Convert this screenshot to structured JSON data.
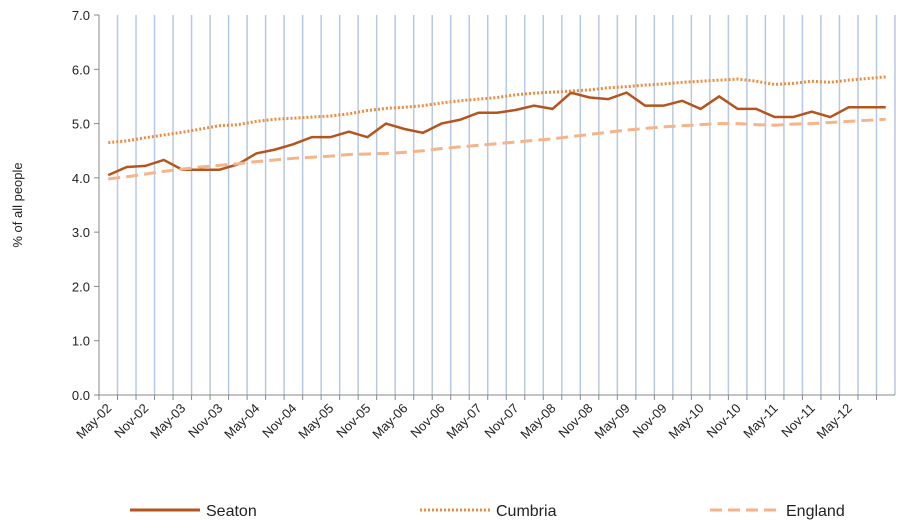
{
  "chart_data": {
    "type": "line",
    "y_label": "% of all people",
    "categories": [
      "May-02",
      null,
      "Nov-02",
      null,
      "May-03",
      null,
      "Nov-03",
      null,
      "May-04",
      null,
      "Nov-04",
      null,
      "May-05",
      null,
      "Nov-05",
      null,
      "May-06",
      null,
      "Nov-06",
      null,
      "May-07",
      null,
      "Nov-07",
      null,
      "May-08",
      null,
      "Nov-08",
      null,
      "May-09",
      null,
      "Nov-09",
      null,
      "May-10",
      null,
      "Nov-10",
      null,
      "May-11",
      null,
      "Nov-11",
      null,
      "May-12",
      null,
      null
    ],
    "series": [
      {
        "name": "Seaton",
        "color": "#b5541c",
        "style": "solid",
        "values": [
          4.05,
          4.2,
          4.22,
          4.33,
          4.15,
          4.15,
          4.15,
          4.25,
          4.45,
          4.52,
          4.62,
          4.75,
          4.75,
          4.85,
          4.75,
          5.0,
          4.9,
          4.83,
          5.0,
          5.07,
          5.2,
          5.2,
          5.25,
          5.33,
          5.27,
          5.57,
          5.48,
          5.45,
          5.57,
          5.33,
          5.33,
          5.42,
          5.27,
          5.5,
          5.27,
          5.27,
          5.12,
          5.12,
          5.22,
          5.12,
          5.3,
          5.3,
          5.3
        ]
      },
      {
        "name": "Cumbria",
        "color": "#f08a3c",
        "style": "dotted",
        "values": [
          4.65,
          4.68,
          4.74,
          4.79,
          4.84,
          4.9,
          4.96,
          4.98,
          5.04,
          5.08,
          5.1,
          5.12,
          5.14,
          5.18,
          5.24,
          5.28,
          5.3,
          5.33,
          5.38,
          5.42,
          5.45,
          5.48,
          5.53,
          5.56,
          5.58,
          5.6,
          5.62,
          5.66,
          5.68,
          5.71,
          5.73,
          5.76,
          5.78,
          5.8,
          5.82,
          5.78,
          5.72,
          5.74,
          5.78,
          5.76,
          5.8,
          5.83,
          5.86
        ]
      },
      {
        "name": "England",
        "color": "#f5b48a",
        "style": "dashed",
        "values": [
          3.98,
          4.02,
          4.07,
          4.12,
          4.16,
          4.2,
          4.23,
          4.26,
          4.3,
          4.33,
          4.36,
          4.38,
          4.4,
          4.43,
          4.44,
          4.45,
          4.47,
          4.5,
          4.54,
          4.57,
          4.6,
          4.63,
          4.66,
          4.69,
          4.72,
          4.76,
          4.8,
          4.84,
          4.88,
          4.91,
          4.94,
          4.96,
          4.98,
          5.0,
          5.0,
          4.98,
          4.97,
          4.99,
          5.0,
          5.02,
          5.04,
          5.06,
          5.08
        ]
      }
    ],
    "ylim": [
      0,
      7
    ],
    "yticks": [
      {
        "value": 0,
        "label": "0.0"
      },
      {
        "value": 1,
        "label": "1.0"
      },
      {
        "value": 2,
        "label": "2.0"
      },
      {
        "value": 3,
        "label": "3.0"
      },
      {
        "value": 4,
        "label": "4.0"
      },
      {
        "value": 5,
        "label": "5.0"
      },
      {
        "value": 6,
        "label": "6.0"
      },
      {
        "value": 7,
        "label": "7.0"
      }
    ],
    "grid": "vertical",
    "legend": "bottom"
  }
}
